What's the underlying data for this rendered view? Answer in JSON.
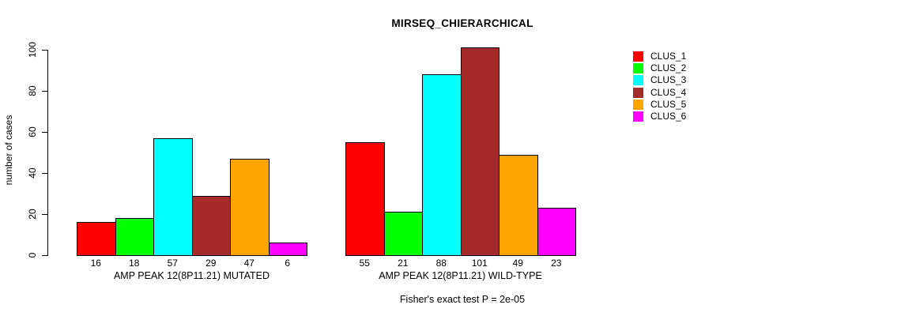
{
  "title": "MIRSEQ_CHIERARCHICAL",
  "chart_data": {
    "type": "bar",
    "title": "MIRSEQ_CHIERARCHICAL",
    "xlabel": "",
    "ylabel": "number of cases",
    "ylim": [
      0,
      100
    ],
    "yticks": [
      0,
      20,
      40,
      60,
      80,
      100
    ],
    "grid": false,
    "legend_position": "right",
    "categories": [
      "AMP PEAK 12(8P11.21) MUTATED",
      "AMP PEAK 12(8P11.21) WILD-TYPE"
    ],
    "series": [
      {
        "name": "CLUS_1",
        "color": "#ff0000",
        "values": [
          16,
          55
        ]
      },
      {
        "name": "CLUS_2",
        "color": "#00ff00",
        "values": [
          18,
          21
        ]
      },
      {
        "name": "CLUS_3",
        "color": "#00ffff",
        "values": [
          57,
          88
        ]
      },
      {
        "name": "CLUS_4",
        "color": "#a52a2a",
        "values": [
          29,
          101
        ]
      },
      {
        "name": "CLUS_5",
        "color": "#ffa500",
        "values": [
          47,
          49
        ]
      },
      {
        "name": "CLUS_6",
        "color": "#ff00ff",
        "values": [
          6,
          23
        ]
      }
    ],
    "groups": [
      {
        "label": "AMP PEAK 12(8P11.21) MUTATED",
        "values": [
          16,
          18,
          57,
          29,
          47,
          6
        ]
      },
      {
        "label": "AMP PEAK 12(8P11.21) WILD-TYPE",
        "values": [
          55,
          21,
          88,
          101,
          49,
          23
        ]
      }
    ],
    "bar_value_labels_shown": true,
    "annotation": "Fisher's exact test P = 2e-05"
  },
  "legend": {
    "items": [
      {
        "label": "CLUS_1",
        "color": "#ff0000"
      },
      {
        "label": "CLUS_2",
        "color": "#00ff00"
      },
      {
        "label": "CLUS_3",
        "color": "#00ffff"
      },
      {
        "label": "CLUS_4",
        "color": "#a52a2a"
      },
      {
        "label": "CLUS_5",
        "color": "#ffa500"
      },
      {
        "label": "CLUS_6",
        "color": "#ff00ff"
      }
    ]
  },
  "colors": {
    "background": "#ffffff",
    "axis": "#000000",
    "text": "#000000"
  }
}
